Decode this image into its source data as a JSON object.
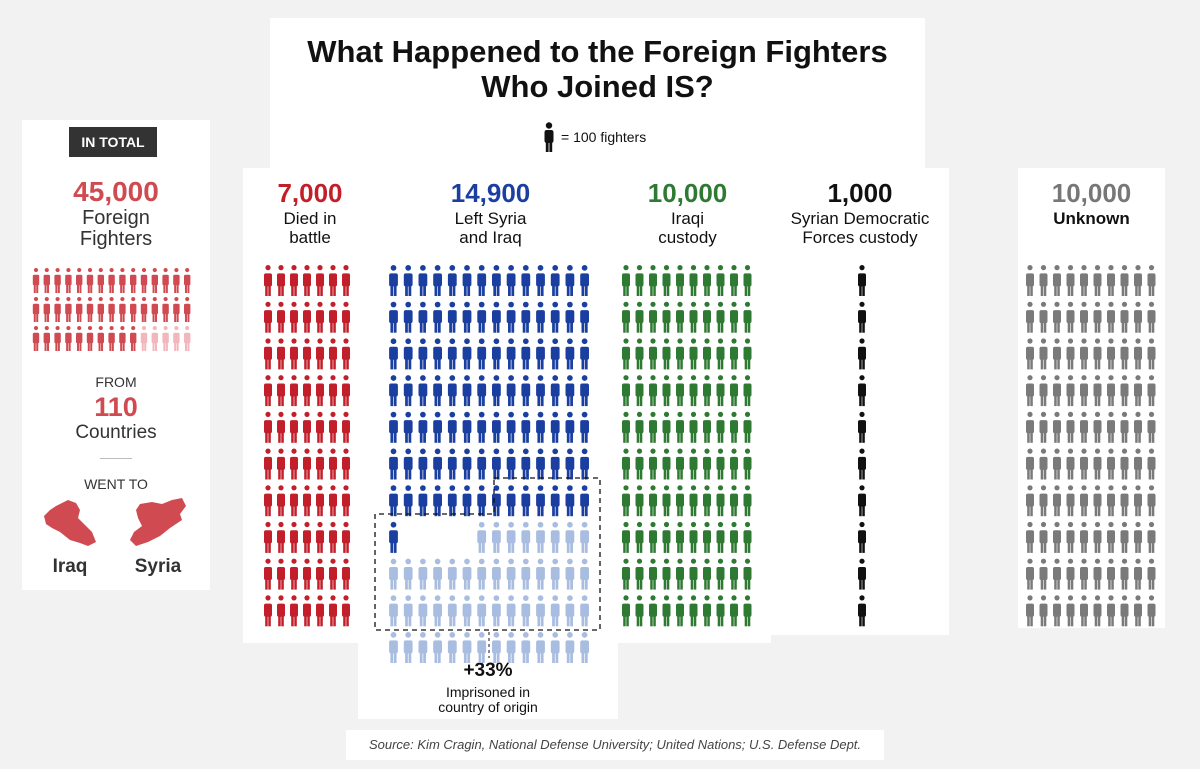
{
  "title": "What Happened to the Foreign Fighters Who Joined IS?",
  "legend": {
    "label": "= 100 fighters",
    "icon": "person-icon"
  },
  "total": {
    "badge": "IN TOTAL",
    "value": "45,000",
    "label": "Foreign Fighters",
    "from_label": "FROM",
    "countries_value": "110",
    "countries_label": "Countries",
    "went_label": "WENT TO",
    "destinations": [
      "Iraq",
      "Syria"
    ],
    "icon_units": 45,
    "icon_columns": 15,
    "icon_color": "#d04a52",
    "icon_faded_color": "#f2b7bc",
    "icon_faded_from": 40
  },
  "note": {
    "value": "+33%",
    "label": "Imprisoned in country of origin"
  },
  "source": "Source: Kim Cragin, National Defense University; United Nations; U.S. Defense Dept.",
  "chart_data": {
    "type": "pictogram",
    "unit": 100,
    "unit_label": "fighters",
    "total_value": 45000,
    "categories": [
      {
        "value": "7,000",
        "label": "Died in battle",
        "icon_count": 70,
        "columns": 7,
        "color": "#c21f2a"
      },
      {
        "value": "14,900",
        "label": "Left Syria and Iraq",
        "icon_count": 149,
        "columns": 14,
        "color": "#1a3fa0",
        "highlight_count": 50,
        "highlight_color": "#a9bde0"
      },
      {
        "value": "10,000",
        "label": "Iraqi custody",
        "icon_count": 100,
        "columns": 10,
        "color": "#2f7a33"
      },
      {
        "value": "1,000",
        "label": "Syrian Democratic Forces custody",
        "icon_count": 10,
        "columns": 1,
        "color": "#111111"
      },
      {
        "value": "10,000",
        "label": "Unknown",
        "icon_count": 100,
        "columns": 10,
        "color": "#7a7a7a"
      }
    ]
  }
}
